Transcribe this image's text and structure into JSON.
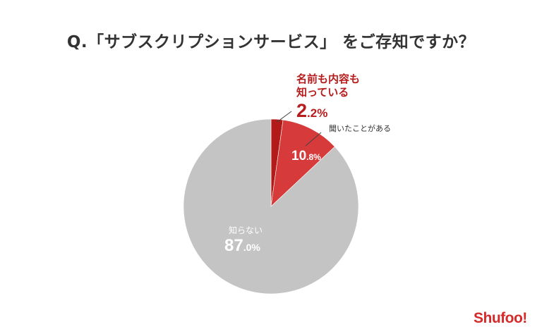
{
  "title": "Q.「サブスクリプションサービス」 をご存知ですか？",
  "colors": {
    "background": "#ffffff",
    "title": "#333333",
    "dark_red": "#b31a1a",
    "red": "#d63a3a",
    "gray": "#c4c4c4",
    "label_red": "#b71c1c",
    "label_dark": "#333333",
    "label_white": "#ffffff",
    "logo": "#d42a2a"
  },
  "logo": "Shufoo!",
  "chart_data": {
    "type": "pie",
    "title": "Q.「サブスクリプションサービス」 をご存知ですか？",
    "series": [
      {
        "name": "名前も内容も知っている",
        "name_lines": [
          "名前も内容も",
          "知っている"
        ],
        "value": 2.2,
        "value_main": "2",
        "value_decimal": ".2%",
        "color": "#b31a1a"
      },
      {
        "name": "聞いたことがある",
        "name_lines": [
          "聞いたことがある"
        ],
        "value": 10.8,
        "value_main": "10",
        "value_decimal": ".8%",
        "color": "#d63a3a"
      },
      {
        "name": "知らない",
        "name_lines": [
          "知らない"
        ],
        "value": 87.0,
        "value_main": "87",
        "value_decimal": ".0%",
        "color": "#c4c4c4"
      }
    ]
  }
}
